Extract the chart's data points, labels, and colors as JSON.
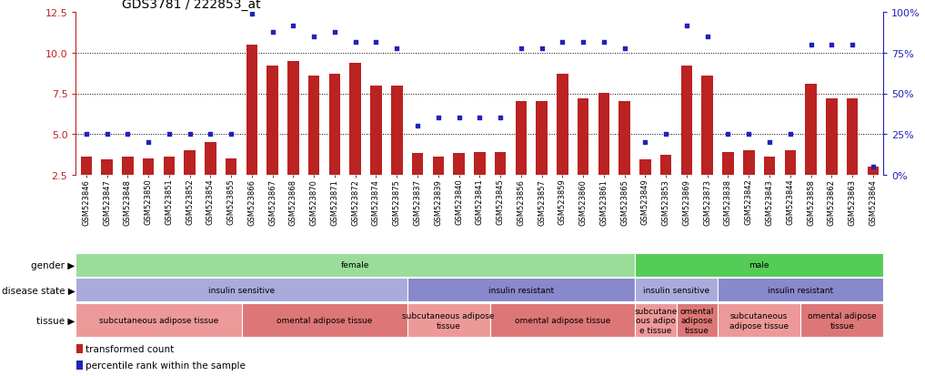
{
  "title": "GDS3781 / 222853_at",
  "samples": [
    "GSM523846",
    "GSM523847",
    "GSM523848",
    "GSM523850",
    "GSM523851",
    "GSM523852",
    "GSM523854",
    "GSM523855",
    "GSM523866",
    "GSM523867",
    "GSM523868",
    "GSM523870",
    "GSM523871",
    "GSM523872",
    "GSM523874",
    "GSM523875",
    "GSM523837",
    "GSM523839",
    "GSM523840",
    "GSM523841",
    "GSM523845",
    "GSM523856",
    "GSM523857",
    "GSM523859",
    "GSM523860",
    "GSM523861",
    "GSM523865",
    "GSM523849",
    "GSM523853",
    "GSM523869",
    "GSM523873",
    "GSM523838",
    "GSM523842",
    "GSM523843",
    "GSM523844",
    "GSM523858",
    "GSM523862",
    "GSM523863",
    "GSM523864"
  ],
  "bar_values": [
    3.6,
    3.4,
    3.6,
    3.5,
    3.6,
    4.0,
    4.5,
    3.5,
    10.5,
    9.2,
    9.5,
    8.6,
    8.7,
    9.4,
    8.0,
    8.0,
    3.8,
    3.6,
    3.8,
    3.9,
    3.9,
    7.0,
    7.0,
    8.7,
    7.2,
    7.5,
    7.0,
    3.4,
    3.7,
    9.2,
    8.6,
    3.9,
    4.0,
    3.6,
    4.0,
    8.1,
    7.2,
    7.2,
    3.0
  ],
  "scatter_pct": [
    25,
    25,
    25,
    20,
    25,
    25,
    25,
    25,
    99,
    88,
    92,
    85,
    88,
    82,
    82,
    78,
    30,
    35,
    35,
    35,
    35,
    78,
    78,
    82,
    82,
    82,
    78,
    20,
    25,
    92,
    85,
    25,
    25,
    20,
    25,
    80,
    80,
    80,
    5
  ],
  "ylim_left": [
    2.5,
    12.5
  ],
  "ylim_right": [
    0,
    100
  ],
  "yticks_left": [
    2.5,
    5.0,
    7.5,
    10.0,
    12.5
  ],
  "yticks_right": [
    0,
    25,
    50,
    75,
    100
  ],
  "ytick_labels_right": [
    "0%",
    "25%",
    "50%",
    "75%",
    "100%"
  ],
  "bar_color": "#BB2222",
  "scatter_color": "#2222BB",
  "bar_bottom": 2.5,
  "segments": {
    "gender": [
      {
        "label": "female",
        "start": 0,
        "end": 27,
        "color": "#99DD99"
      },
      {
        "label": "male",
        "start": 27,
        "end": 39,
        "color": "#55CC55"
      }
    ],
    "disease_state": [
      {
        "label": "insulin sensitive",
        "start": 0,
        "end": 16,
        "color": "#AAAADD"
      },
      {
        "label": "insulin resistant",
        "start": 16,
        "end": 27,
        "color": "#8888CC"
      },
      {
        "label": "insulin sensitive",
        "start": 27,
        "end": 31,
        "color": "#AAAADD"
      },
      {
        "label": "insulin resistant",
        "start": 31,
        "end": 39,
        "color": "#8888CC"
      }
    ],
    "tissue": [
      {
        "label": "subcutaneous adipose tissue",
        "start": 0,
        "end": 8,
        "color": "#EE9999"
      },
      {
        "label": "omental adipose tissue",
        "start": 8,
        "end": 16,
        "color": "#DD7777"
      },
      {
        "label": "subcutaneous adipose\ntissue",
        "start": 16,
        "end": 20,
        "color": "#EE9999"
      },
      {
        "label": "omental adipose tissue",
        "start": 20,
        "end": 27,
        "color": "#DD7777"
      },
      {
        "label": "subcutane\nous adipo\ne tissue",
        "start": 27,
        "end": 29,
        "color": "#EE9999"
      },
      {
        "label": "omental\nadipose\ntissue",
        "start": 29,
        "end": 31,
        "color": "#DD7777"
      },
      {
        "label": "subcutaneous\nadipose tissue",
        "start": 31,
        "end": 35,
        "color": "#EE9999"
      },
      {
        "label": "omental adipose\ntissue",
        "start": 35,
        "end": 39,
        "color": "#DD7777"
      }
    ]
  },
  "row_labels": [
    "gender",
    "disease state",
    "tissue"
  ],
  "row_keys": [
    "gender",
    "disease_state",
    "tissue"
  ],
  "legend_items": [
    {
      "label": "transformed count",
      "color": "#BB2222"
    },
    {
      "label": "percentile rank within the sample",
      "color": "#2222BB"
    }
  ]
}
